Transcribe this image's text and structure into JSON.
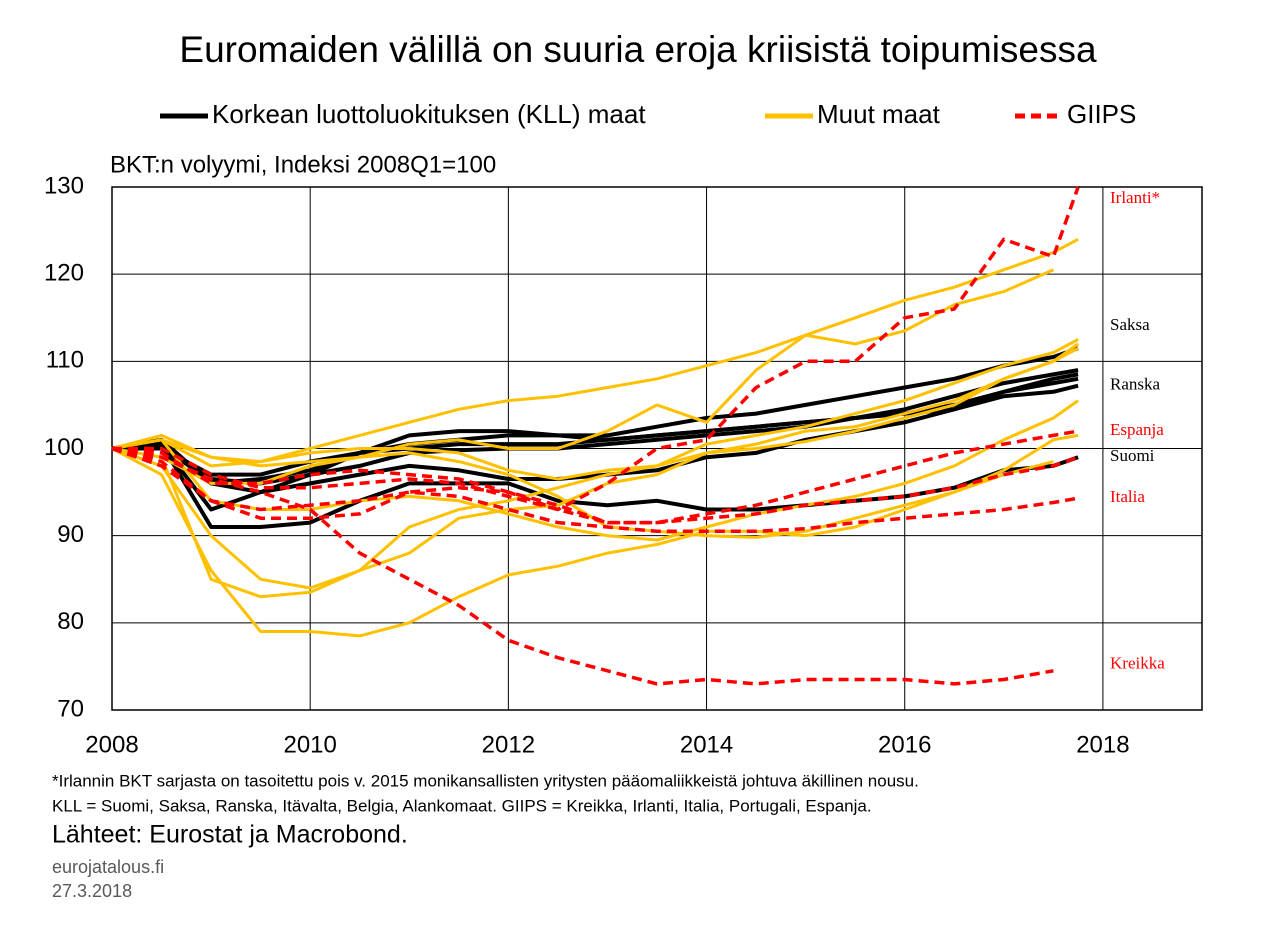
{
  "chart_data": {
    "type": "line",
    "title": "Euromaiden välillä on suuria eroja kriisistä toipumisessa",
    "subtitle": "BKT:n volyymi, Indeksi 2008Q1=100",
    "legend": [
      {
        "name": "Korkean luottoluokituksen (KLL) maat",
        "color": "#000000",
        "dash": false
      },
      {
        "name": "Muut maat",
        "color": "#ffc000",
        "dash": false
      },
      {
        "name": "GIIPS",
        "color": "#ff0000",
        "dash": true
      }
    ],
    "x": [
      2008,
      2008.5,
      2009,
      2009.5,
      2010,
      2010.5,
      2011,
      2011.5,
      2012,
      2012.5,
      2013,
      2013.5,
      2014,
      2014.5,
      2015,
      2015.5,
      2016,
      2016.5,
      2017,
      2017.5,
      2017.75
    ],
    "xlim": [
      2008,
      2019
    ],
    "xticks": [
      2008,
      2010,
      2012,
      2014,
      2016,
      2018
    ],
    "ylim": [
      70,
      130
    ],
    "yticks": [
      70,
      80,
      90,
      100,
      110,
      120,
      130
    ],
    "grid": true,
    "series": [
      {
        "group": 0,
        "label": "Saksa",
        "color": "#000000",
        "values": [
          100,
          100.5,
          93,
          95,
          97,
          99.5,
          101.5,
          102,
          102,
          101.5,
          101.5,
          102.5,
          103.5,
          104,
          105,
          106,
          107,
          108,
          109.5,
          110.5,
          111.5
        ]
      },
      {
        "group": 0,
        "label": "Ranska",
        "color": "#000000",
        "values": [
          100,
          100,
          96.5,
          96,
          97,
          98,
          99.5,
          99.8,
          100,
          100,
          100.5,
          101,
          101.5,
          102,
          102.5,
          103.5,
          104,
          104.5,
          106,
          106.5,
          107.2
        ]
      },
      {
        "group": 0,
        "label": "Suomi",
        "color": "#000000",
        "values": [
          100,
          100.5,
          91,
          91,
          91.5,
          94,
          96,
          96,
          96,
          94,
          93.5,
          94,
          93,
          93,
          93.5,
          94,
          94.5,
          95.5,
          97.5,
          98,
          99
        ]
      },
      {
        "group": 0,
        "color": "#000000",
        "values": [
          100,
          101,
          96,
          96.5,
          97.5,
          99.5,
          100.5,
          101,
          101.5,
          101.5,
          101,
          101.5,
          102,
          102.5,
          103,
          103.5,
          104.5,
          106,
          107.5,
          108.5,
          109
        ]
      },
      {
        "group": 0,
        "color": "#000000",
        "values": [
          100,
          100,
          97,
          97,
          98.5,
          99.5,
          100,
          100.5,
          100.5,
          100.5,
          101,
          101.5,
          102,
          102.5,
          103,
          103.5,
          104,
          105,
          106.5,
          107.5,
          108
        ]
      },
      {
        "group": 0,
        "color": "#000000",
        "values": [
          100,
          100.5,
          96,
          95,
          96,
          97,
          98,
          97.5,
          96.5,
          96.5,
          97,
          97.5,
          99,
          99.5,
          101,
          102,
          103,
          104.5,
          106.5,
          108,
          108.5
        ]
      },
      {
        "group": 1,
        "color": "#ffc000",
        "values": [
          100,
          101.5,
          99,
          98.5,
          100,
          101.5,
          103,
          104.5,
          105.5,
          106,
          107,
          108,
          109.5,
          111,
          113,
          115,
          117,
          118.5,
          120.5,
          122.5,
          124
        ]
      },
      {
        "group": 1,
        "color": "#ffc000",
        "values": [
          100,
          99,
          96,
          96,
          98,
          99,
          100.5,
          101,
          100,
          100,
          102,
          105,
          103,
          109,
          113,
          112,
          113.5,
          116.5,
          118,
          120.5,
          null
        ]
      },
      {
        "group": 1,
        "color": "#ffc000",
        "values": [
          100,
          97,
          86,
          79,
          79,
          78.5,
          80,
          83,
          85.5,
          86.5,
          88,
          89,
          90.5,
          90.5,
          90,
          91,
          93,
          95,
          97.5,
          101,
          101.5
        ]
      },
      {
        "group": 1,
        "color": "#ffc000",
        "values": [
          100,
          99,
          85,
          83,
          83.5,
          86,
          88,
          92,
          93,
          93.5,
          96,
          97,
          99.5,
          100.5,
          102,
          102.5,
          104,
          105.5,
          108,
          110,
          112
        ]
      },
      {
        "group": 1,
        "color": "#ffc000",
        "values": [
          100,
          98,
          90,
          85,
          84,
          86,
          91,
          93,
          94,
          95.5,
          97,
          98,
          100.5,
          101.5,
          102.5,
          104,
          105.5,
          107.5,
          109.5,
          111,
          112.5
        ]
      },
      {
        "group": 1,
        "color": "#ffc000",
        "values": [
          100,
          101,
          94,
          93,
          93,
          94,
          94.5,
          94,
          92.5,
          91,
          90,
          89.5,
          91,
          92.5,
          93.5,
          94.5,
          96,
          98,
          101,
          103.5,
          105.5
        ]
      },
      {
        "group": 1,
        "color": "#ffc000",
        "values": [
          100,
          101,
          99,
          98,
          98.5,
          99,
          99.5,
          98.5,
          97,
          94.5,
          91,
          90.5,
          90,
          89.8,
          90.5,
          92,
          93.5,
          95,
          97,
          98.5,
          null
        ]
      },
      {
        "group": 1,
        "color": "#ffc000",
        "values": [
          100,
          101,
          98,
          98.5,
          99.5,
          100,
          100,
          99.5,
          97.5,
          96.5,
          97.5,
          98,
          99.5,
          100,
          100.8,
          102,
          103.5,
          105,
          108,
          110,
          111.5
        ]
      },
      {
        "group": 2,
        "label": "Irlanti*",
        "color": "#ff0000",
        "values": [
          100,
          98,
          94,
          92,
          92,
          92.5,
          95,
          95.5,
          95,
          93,
          96,
          100,
          101,
          107,
          110,
          110,
          115,
          116,
          124,
          122,
          130
        ]
      },
      {
        "group": 2,
        "label": "Kreikka",
        "color": "#ff0000",
        "values": [
          100,
          99,
          96.5,
          95,
          93,
          88,
          85,
          82,
          78,
          76,
          74.5,
          73,
          73.5,
          73,
          73.5,
          73.5,
          73.5,
          73,
          73.5,
          74.5,
          null
        ]
      },
      {
        "group": 2,
        "label": "Italia",
        "color": "#ff0000",
        "values": [
          100,
          98.5,
          94,
          93,
          93.5,
          94,
          95,
          94.5,
          93,
          91.5,
          91,
          90.5,
          90.5,
          90.5,
          90.8,
          91.5,
          92,
          92.5,
          93,
          93.8,
          94.3
        ]
      },
      {
        "group": 2,
        "label": "Espanja",
        "color": "#ff0000",
        "values": [
          100,
          100,
          97,
          95.5,
          95.5,
          96,
          96.5,
          96,
          94.5,
          93,
          91.5,
          91.5,
          92.5,
          93.5,
          95,
          96.5,
          98,
          99.5,
          100.5,
          101.5,
          102
        ]
      },
      {
        "group": 2,
        "color": "#ff0000",
        "values": [
          100,
          99.5,
          96,
          96,
          97,
          97.5,
          97,
          96.5,
          95,
          93.5,
          91.5,
          91.5,
          92,
          92.5,
          93.5,
          94,
          94.5,
          95.5,
          97,
          98,
          99
        ]
      }
    ],
    "notes": [
      "*Irlannin BKT sarjasta on tasoitettu pois v. 2015 monikansallisten yritysten pääomaliikkeistä johtuva äkillinen nousu.",
      "KLL = Suomi, Saksa, Ranska, Itävalta, Belgia, Alankomaat. GIIPS = Kreikka, Irlanti, Italia, Portugali, Espanja."
    ],
    "source": "Lähteet: Eurostat ja Macrobond.",
    "site": "eurojatalous.fi",
    "date": "27.3.2018"
  }
}
